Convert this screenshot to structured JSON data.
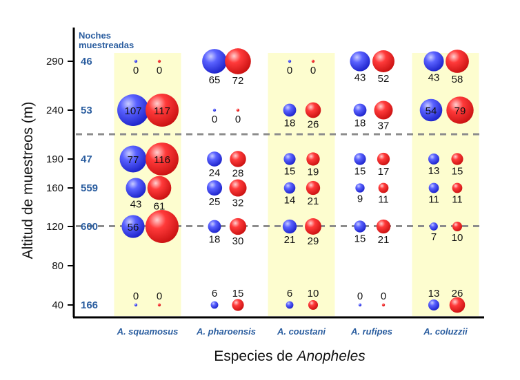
{
  "chart_data": {
    "type": "bubble",
    "title": "",
    "xlabel_prefix": "Especies de ",
    "xlabel_italic": "Anopheles",
    "ylabel": "Altitud de muestreos (m)",
    "y_ticks": [
      40,
      80,
      120,
      160,
      190,
      240,
      290
    ],
    "y_axis_note": "categorical altitude positions",
    "nights_header": [
      "Noches",
      "muestreadas"
    ],
    "nights": [
      {
        "altitude": 290,
        "nights": "46"
      },
      {
        "altitude": 240,
        "nights": "53"
      },
      {
        "altitude": 190,
        "nights": "47"
      },
      {
        "altitude": 160,
        "nights": "559"
      },
      {
        "altitude": 120,
        "nights": "600"
      },
      {
        "altitude": 40,
        "nights": "166"
      }
    ],
    "categories": [
      "A. squamosus",
      "A. pharoensis",
      "A. coustani",
      "A. rufipes",
      "A. coluzzii"
    ],
    "highlighted_categories": [
      "A. squamosus",
      "A. coustani",
      "A. coluzzii"
    ],
    "altitudes": [
      290,
      240,
      190,
      160,
      120,
      40
    ],
    "dashed_lines_between": [
      [
        240,
        190
      ],
      [
        120,
        80
      ]
    ],
    "series": [
      {
        "color": "#3a4bff",
        "values": {
          "A. squamosus": [
            0,
            107,
            77,
            43,
            56,
            0
          ],
          "A. pharoensis": [
            65,
            0,
            24,
            25,
            18,
            6
          ],
          "A. coustani": [
            0,
            18,
            15,
            14,
            21,
            6
          ],
          "A. rufipes": [
            43,
            18,
            15,
            9,
            15,
            0
          ],
          "A. coluzzii": [
            43,
            54,
            13,
            11,
            7,
            13
          ]
        }
      },
      {
        "color": "#ff2a2a",
        "values": {
          "A. squamosus": [
            0,
            117,
            116,
            61,
            null,
            0
          ],
          "A. pharoensis": [
            72,
            0,
            28,
            32,
            30,
            15
          ],
          "A. coustani": [
            0,
            26,
            19,
            21,
            29,
            10
          ],
          "A. rufipes": [
            52,
            37,
            17,
            11,
            21,
            0
          ],
          "A. coluzzii": [
            58,
            79,
            15,
            11,
            10,
            26
          ]
        }
      }
    ],
    "colors": {
      "blue": "#3a4bff",
      "red": "#ff2a2a",
      "highlight": "#fdfdcf",
      "nights_text": "#2a5d9f",
      "dashed": "#8c8c8c"
    }
  }
}
